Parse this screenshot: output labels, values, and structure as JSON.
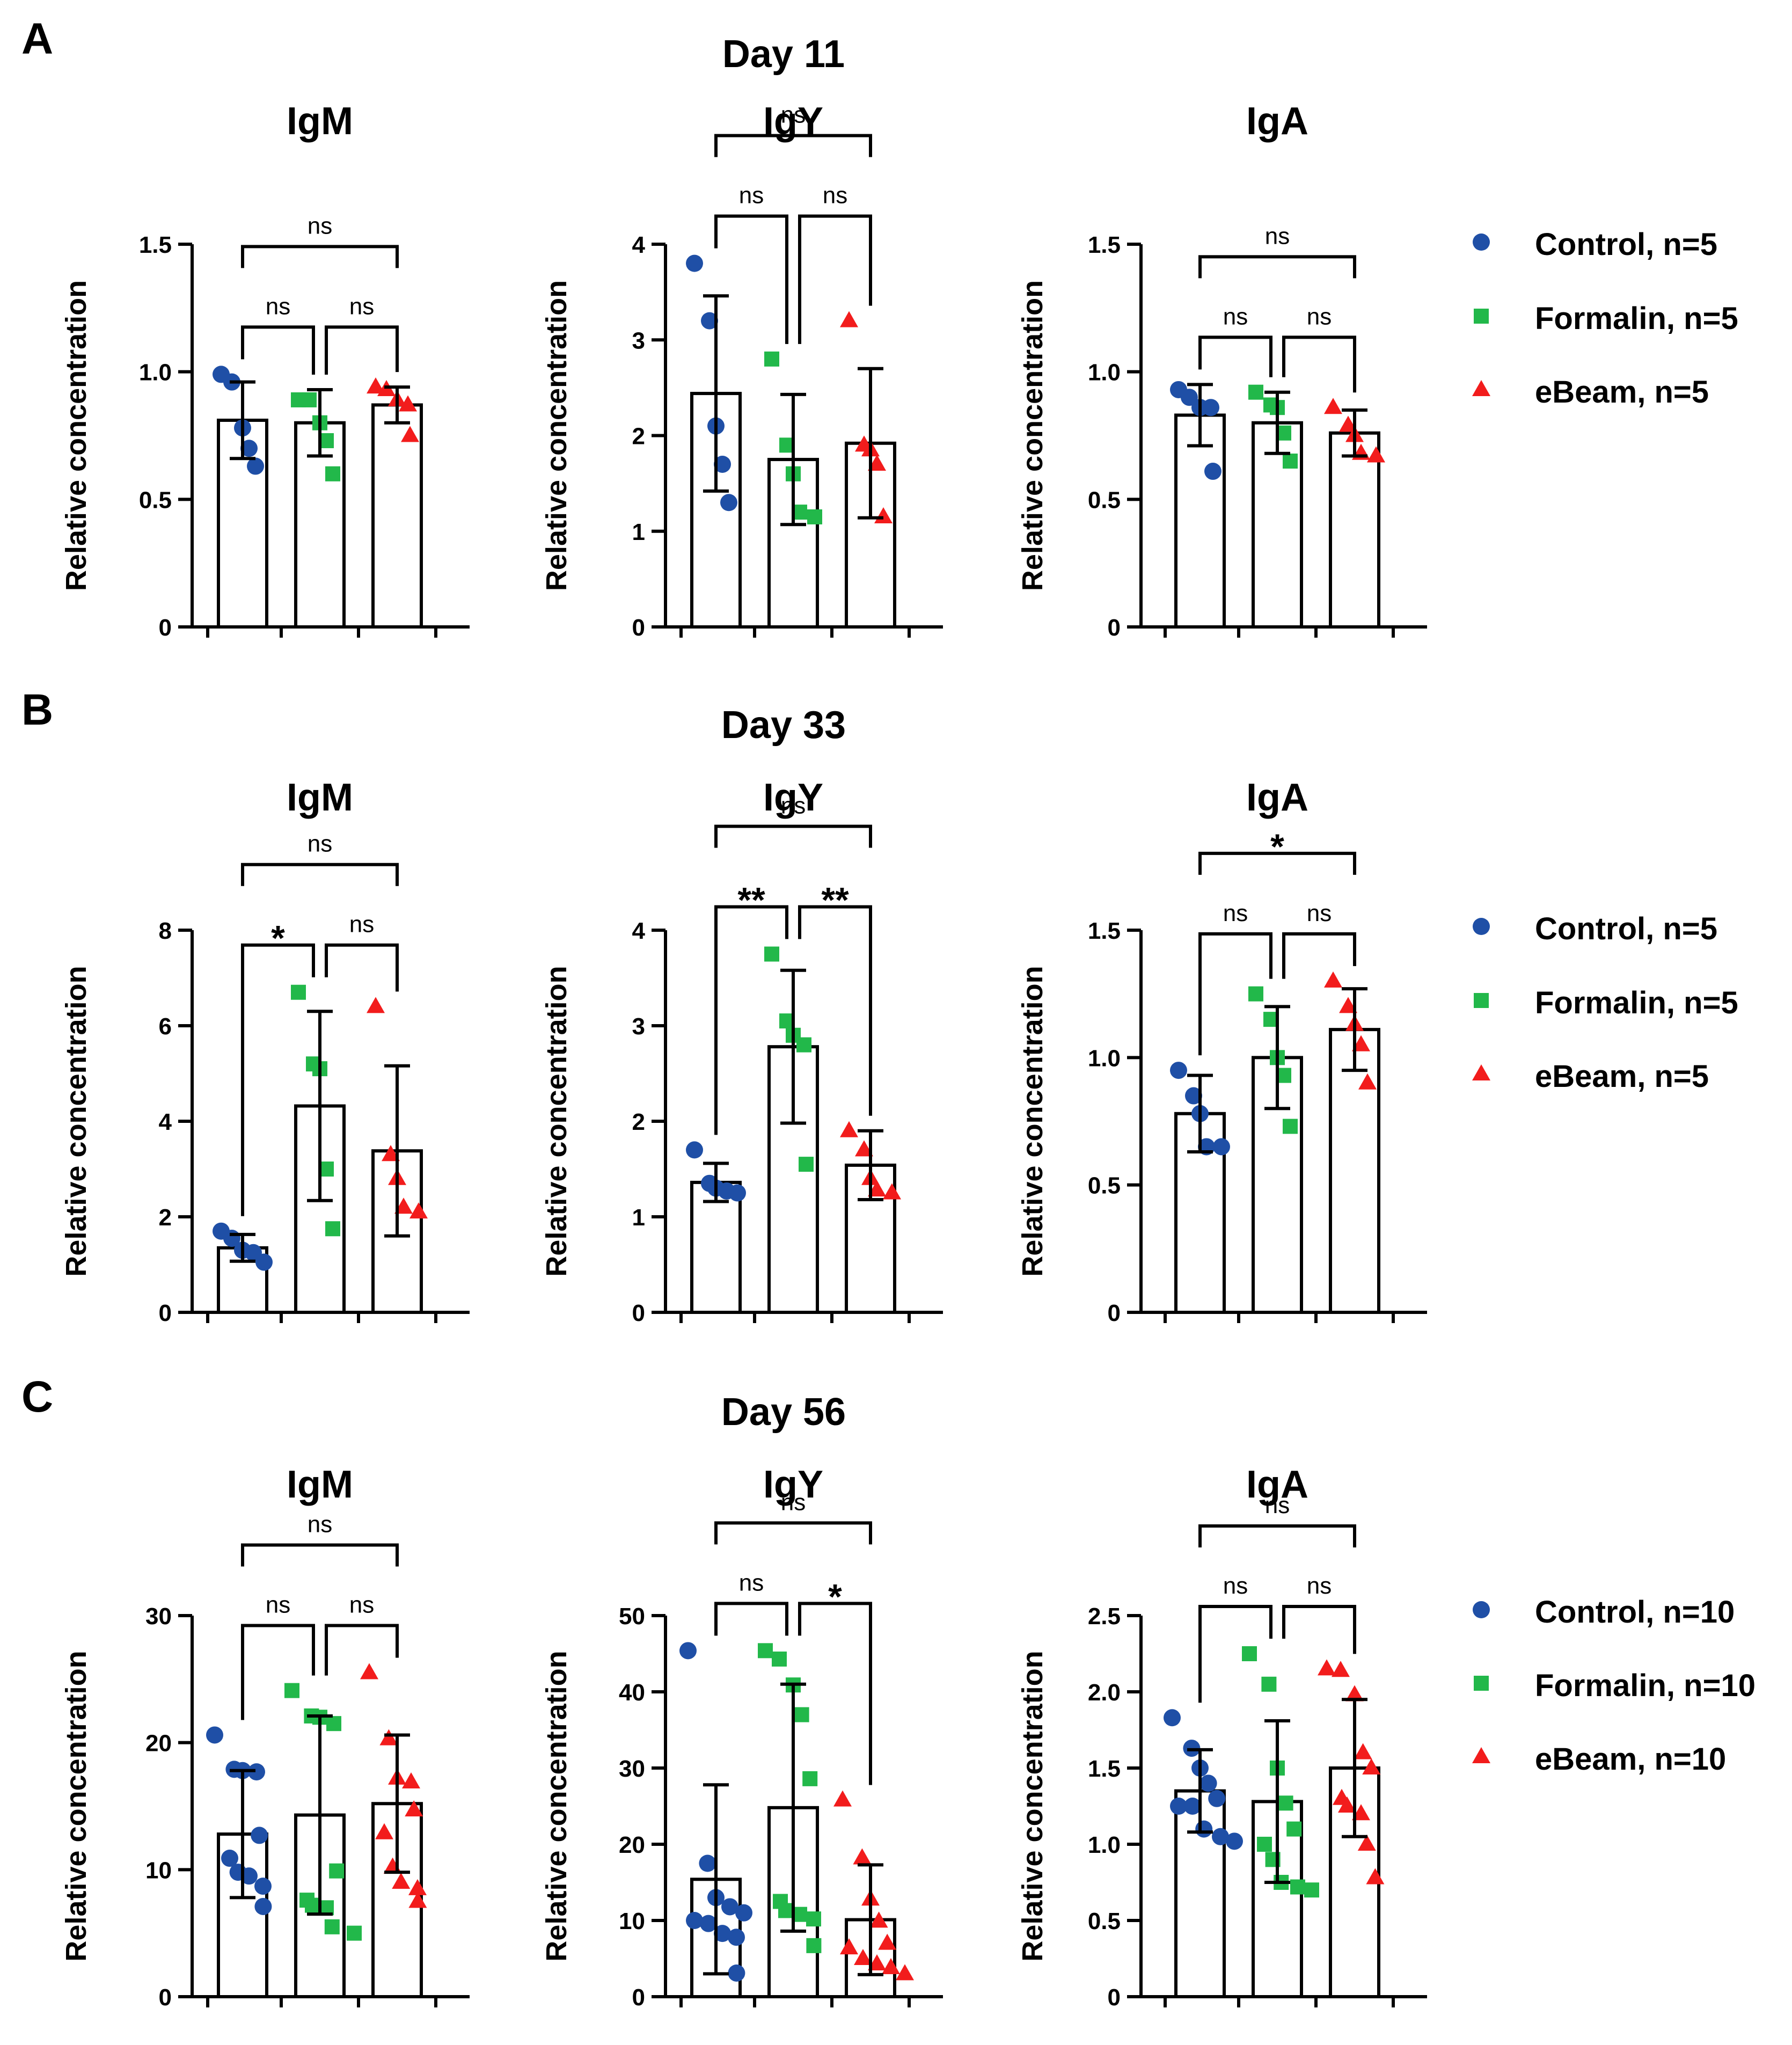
{
  "colors": {
    "control": "#1f4fa6",
    "formalin": "#22b84a",
    "ebeam": "#f21c1c"
  },
  "legend_markers": {
    "control": "circle",
    "formalin": "square",
    "ebeam": "triangle"
  },
  "panels": [
    {
      "letter": "A",
      "title": "Day 11",
      "legend": [
        "Control, n=5",
        "Formalin, n=5",
        "eBeam, n=5"
      ]
    },
    {
      "letter": "B",
      "title": "Day 33",
      "legend": [
        "Control, n=5",
        "Formalin, n=5",
        "eBeam, n=5"
      ]
    },
    {
      "letter": "C",
      "title": "Day 56",
      "legend": [
        "Control, n=10",
        "Formalin, n=10",
        "eBeam, n=10"
      ]
    }
  ],
  "chart_data": [
    {
      "type": "bar",
      "panel": "A",
      "title": "IgM",
      "ylabel": "Relative concentration",
      "ylim": [
        0,
        1.5
      ],
      "yticks": [
        "0",
        "0.5",
        "1.0",
        "1.5"
      ],
      "ytick_values": [
        0,
        0.5,
        1.0,
        1.5
      ],
      "categories": [
        "Control",
        "Formalin",
        "eBeam"
      ],
      "means": [
        0.81,
        0.8,
        0.87
      ],
      "errors": [
        0.15,
        0.13,
        0.07
      ],
      "points": [
        [
          0.99,
          0.96,
          0.78,
          0.7,
          0.63
        ],
        [
          0.89,
          0.89,
          0.8,
          0.73,
          0.6
        ],
        [
          0.94,
          0.93,
          0.89,
          0.87,
          0.75
        ]
      ],
      "comparisons": [
        {
          "label": "ns",
          "from": 0,
          "to": 1
        },
        {
          "label": "ns",
          "from": 1,
          "to": 2
        },
        {
          "label": "ns",
          "from": 0,
          "to": 2
        }
      ]
    },
    {
      "type": "bar",
      "panel": "A",
      "title": "IgY",
      "ylabel": "Relative concentration",
      "ylim": [
        0,
        4
      ],
      "yticks": [
        "0",
        "1",
        "2",
        "3",
        "4"
      ],
      "ytick_values": [
        0,
        1,
        2,
        3,
        4
      ],
      "categories": [
        "Control",
        "Formalin",
        "eBeam"
      ],
      "means": [
        2.44,
        1.75,
        1.92
      ],
      "errors": [
        1.02,
        0.68,
        0.78
      ],
      "points": [
        [
          3.8,
          3.2,
          2.1,
          1.7,
          1.3
        ],
        [
          2.8,
          1.9,
          1.6,
          1.2,
          1.15
        ],
        [
          3.2,
          1.9,
          1.85,
          1.7,
          1.15
        ]
      ],
      "comparisons": [
        {
          "label": "ns",
          "from": 0,
          "to": 1
        },
        {
          "label": "ns",
          "from": 1,
          "to": 2
        },
        {
          "label": "ns",
          "from": 0,
          "to": 2
        }
      ]
    },
    {
      "type": "bar",
      "panel": "A",
      "title": "IgA",
      "ylabel": "Relative concentration",
      "ylim": [
        0,
        1.5
      ],
      "yticks": [
        "0",
        "0.5",
        "1.0",
        "1.5"
      ],
      "ytick_values": [
        0,
        0.5,
        1.0,
        1.5
      ],
      "categories": [
        "Control",
        "Formalin",
        "eBeam"
      ],
      "means": [
        0.83,
        0.8,
        0.76
      ],
      "errors": [
        0.12,
        0.12,
        0.09
      ],
      "points": [
        [
          0.93,
          0.9,
          0.86,
          0.86,
          0.61
        ],
        [
          0.92,
          0.87,
          0.86,
          0.76,
          0.65
        ],
        [
          0.86,
          0.79,
          0.75,
          0.68,
          0.67
        ]
      ],
      "comparisons": [
        {
          "label": "ns",
          "from": 0,
          "to": 1
        },
        {
          "label": "ns",
          "from": 1,
          "to": 2
        },
        {
          "label": "ns",
          "from": 0,
          "to": 2
        }
      ]
    },
    {
      "type": "bar",
      "panel": "B",
      "title": "IgM",
      "ylabel": "Relative concentration",
      "ylim": [
        0,
        8
      ],
      "yticks": [
        "0",
        "2",
        "4",
        "6",
        "8"
      ],
      "ytick_values": [
        0,
        2,
        4,
        6,
        8
      ],
      "categories": [
        "Control",
        "Formalin",
        "eBeam"
      ],
      "means": [
        1.35,
        4.32,
        3.38
      ],
      "errors": [
        0.28,
        1.98,
        1.78
      ],
      "points": [
        [
          1.7,
          1.55,
          1.3,
          1.25,
          1.05
        ],
        [
          6.7,
          5.2,
          5.1,
          3.0,
          1.75
        ],
        [
          6.4,
          3.3,
          2.8,
          2.2,
          2.1
        ]
      ],
      "comparisons": [
        {
          "label": "*",
          "from": 0,
          "to": 1
        },
        {
          "label": "ns",
          "from": 1,
          "to": 2
        },
        {
          "label": "ns",
          "from": 0,
          "to": 2
        }
      ]
    },
    {
      "type": "bar",
      "panel": "B",
      "title": "IgY",
      "ylabel": "Relative concentration",
      "ylim": [
        0,
        4
      ],
      "yticks": [
        "0",
        "1",
        "2",
        "3",
        "4"
      ],
      "ytick_values": [
        0,
        1,
        2,
        3,
        4
      ],
      "categories": [
        "Control",
        "Formalin",
        "eBeam"
      ],
      "means": [
        1.36,
        2.78,
        1.54
      ],
      "errors": [
        0.2,
        0.8,
        0.36
      ],
      "points": [
        [
          1.7,
          1.35,
          1.3,
          1.27,
          1.25
        ],
        [
          3.75,
          3.05,
          2.9,
          2.8,
          1.55
        ],
        [
          1.9,
          1.7,
          1.4,
          1.28,
          1.25
        ]
      ],
      "comparisons": [
        {
          "label": "**",
          "from": 0,
          "to": 1
        },
        {
          "label": "**",
          "from": 1,
          "to": 2
        },
        {
          "label": "ns",
          "from": 0,
          "to": 2
        }
      ]
    },
    {
      "type": "bar",
      "panel": "B",
      "title": "IgA",
      "ylabel": "Relative concentration",
      "ylim": [
        0,
        1.5
      ],
      "yticks": [
        "0",
        "0.5",
        "1.0",
        "1.5"
      ],
      "ytick_values": [
        0,
        0.5,
        1.0,
        1.5
      ],
      "categories": [
        "Control",
        "Formalin",
        "eBeam"
      ],
      "means": [
        0.78,
        1.0,
        1.11
      ],
      "errors": [
        0.15,
        0.2,
        0.16
      ],
      "points": [
        [
          0.95,
          0.85,
          0.78,
          0.65,
          0.65
        ],
        [
          1.25,
          1.15,
          1.0,
          0.93,
          0.73
        ],
        [
          1.3,
          1.2,
          1.13,
          1.05,
          0.9
        ]
      ],
      "comparisons": [
        {
          "label": "ns",
          "from": 0,
          "to": 1
        },
        {
          "label": "ns",
          "from": 1,
          "to": 2
        },
        {
          "label": "*",
          "from": 0,
          "to": 2
        }
      ]
    },
    {
      "type": "bar",
      "panel": "C",
      "title": "IgM",
      "ylabel": "Relative concentration",
      "ylim": [
        0,
        30
      ],
      "yticks": [
        "0",
        "10",
        "20",
        "30"
      ],
      "ytick_values": [
        0,
        10,
        20,
        30
      ],
      "categories": [
        "Control",
        "Formalin",
        "eBeam"
      ],
      "means": [
        12.8,
        14.3,
        15.2
      ],
      "errors": [
        5.0,
        7.8,
        5.4
      ],
      "points": [
        [
          20.6,
          17.9,
          17.8,
          17.7,
          12.7,
          10.9,
          9.8,
          9.5,
          8.7,
          7.1
        ],
        [
          24.1,
          22.1,
          22.0,
          21.5,
          9.9,
          7.6,
          7.2,
          7.0,
          5.5,
          5.0
        ],
        [
          25.5,
          20.3,
          17.2,
          16.9,
          14.7,
          12.9,
          10.2,
          9.0,
          8.5,
          7.5
        ]
      ],
      "comparisons": [
        {
          "label": "ns",
          "from": 0,
          "to": 1
        },
        {
          "label": "ns",
          "from": 1,
          "to": 2
        },
        {
          "label": "ns",
          "from": 0,
          "to": 2
        }
      ]
    },
    {
      "type": "bar",
      "panel": "C",
      "title": "IgY",
      "ylabel": "Relative concentration",
      "ylim": [
        0,
        50
      ],
      "yticks": [
        "0",
        "10",
        "20",
        "30",
        "40",
        "50"
      ],
      "ytick_values": [
        0,
        10,
        20,
        30,
        40,
        50
      ],
      "categories": [
        "Control",
        "Formalin",
        "eBeam"
      ],
      "means": [
        15.4,
        24.8,
        10.1
      ],
      "errors": [
        12.4,
        16.2,
        7.2
      ],
      "points": [
        [
          45.4,
          17.5,
          13.0,
          11.8,
          11.0,
          10.0,
          9.6,
          8.3,
          7.8,
          3.1
        ],
        [
          45.4,
          44.3,
          40.9,
          37.0,
          28.6,
          12.5,
          11.3,
          10.8,
          10.2,
          6.7
        ],
        [
          25.8,
          18.2,
          12.8,
          9.9,
          7.0,
          6.4,
          5.0,
          4.3,
          3.8,
          3.0
        ]
      ],
      "comparisons": [
        {
          "label": "ns",
          "from": 0,
          "to": 1
        },
        {
          "label": "*",
          "from": 1,
          "to": 2
        },
        {
          "label": "ns",
          "from": 0,
          "to": 2
        }
      ]
    },
    {
      "type": "bar",
      "panel": "C",
      "title": "IgA",
      "ylabel": "Relative concentration",
      "ylim": [
        0,
        2.5
      ],
      "yticks": [
        "0",
        "0.5",
        "1.0",
        "1.5",
        "2.0",
        "2.5"
      ],
      "ytick_values": [
        0,
        0.5,
        1.0,
        1.5,
        2.0,
        2.5
      ],
      "categories": [
        "Control",
        "Formalin",
        "eBeam"
      ],
      "means": [
        1.35,
        1.28,
        1.5
      ],
      "errors": [
        0.27,
        0.53,
        0.45
      ],
      "points": [
        [
          1.83,
          1.63,
          1.5,
          1.4,
          1.3,
          1.25,
          1.25,
          1.1,
          1.05,
          1.02
        ],
        [
          2.25,
          2.05,
          1.5,
          1.27,
          1.1,
          1.0,
          0.9,
          0.75,
          0.72,
          0.7
        ],
        [
          2.15,
          2.14,
          1.98,
          1.6,
          1.5,
          1.3,
          1.25,
          1.2,
          1.0,
          0.78
        ]
      ],
      "comparisons": [
        {
          "label": "ns",
          "from": 0,
          "to": 1
        },
        {
          "label": "ns",
          "from": 1,
          "to": 2
        },
        {
          "label": "ns",
          "from": 0,
          "to": 2
        }
      ]
    }
  ]
}
